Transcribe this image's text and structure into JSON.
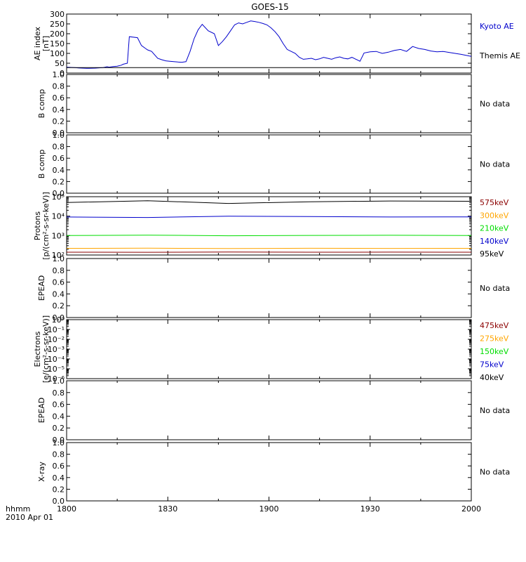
{
  "title": "GOES-15",
  "time_axis": {
    "ticks": [
      "1800",
      "1830",
      "1900",
      "1930",
      "2000"
    ],
    "unit_label": "hhmm",
    "date_label": "2010 Apr 01"
  },
  "colors": {
    "axis": "#000000",
    "kyoto": "#0000cc",
    "themis": "#000000",
    "p575": "#8b0000",
    "p300": "#ffa500",
    "p210": "#00dd00",
    "p140": "#0000cc",
    "p95": "#000000",
    "e475": "#8b0000",
    "e275": "#ffa500",
    "e150": "#00dd00",
    "e75": "#0000cc",
    "e40": "#000000"
  },
  "chart_data": [
    {
      "id": "ae",
      "type": "line",
      "ylabel": [
        "AE index",
        "[nT]"
      ],
      "ylim": [
        0,
        300
      ],
      "yticks": [
        "0",
        "50",
        "100",
        "150",
        "200",
        "250",
        "300"
      ],
      "series": [
        {
          "name": "Kyoto AE",
          "color_key": "kyoto",
          "x": [
            0,
            4,
            6,
            10,
            14,
            18,
            20,
            21,
            23,
            25,
            27,
            28,
            30,
            31,
            35,
            37,
            39,
            40,
            42,
            45,
            47,
            49,
            51,
            53,
            55,
            57,
            59,
            61,
            63,
            65,
            67,
            70,
            73,
            75,
            77,
            79,
            81,
            83,
            85,
            87,
            89,
            91,
            93,
            95,
            97,
            99,
            101,
            103,
            105,
            107,
            109,
            111,
            113,
            115,
            117,
            119,
            121,
            123,
            125,
            127,
            129,
            131,
            133,
            135,
            137,
            139,
            141,
            143,
            145,
            147,
            150,
            153,
            156,
            159,
            162,
            165,
            168,
            171,
            174,
            177,
            180,
            183,
            186,
            189,
            192,
            195,
            200
          ],
          "y": [
            30,
            28,
            26,
            24,
            25,
            28,
            32,
            30,
            33,
            35,
            40,
            45,
            50,
            185,
            180,
            140,
            125,
            118,
            110,
            75,
            68,
            62,
            60,
            58,
            56,
            55,
            58,
            110,
            175,
            220,
            248,
            215,
            200,
            140,
            160,
            185,
            215,
            245,
            255,
            250,
            258,
            265,
            262,
            258,
            252,
            245,
            230,
            210,
            185,
            150,
            120,
            110,
            100,
            80,
            70,
            72,
            75,
            68,
            72,
            80,
            75,
            70,
            78,
            82,
            75,
            72,
            80,
            70,
            60,
            102,
            108,
            110,
            100,
            106,
            115,
            120,
            110,
            135,
            125,
            120,
            112,
            108,
            110,
            105,
            100,
            95,
            85
          ]
        },
        {
          "name": "Themis AE",
          "color_key": "themis",
          "x": [
            0,
            200
          ],
          "y": [
            28,
            28
          ]
        }
      ],
      "legend": [
        {
          "label": "Kyoto AE",
          "color_key": "kyoto"
        },
        {
          "label": "Themis AE",
          "color_key": "themis"
        }
      ],
      "note": ""
    },
    {
      "id": "b1",
      "type": "line",
      "ylabel": [
        "B comp"
      ],
      "ylim": [
        0,
        1
      ],
      "yticks": [
        "0.0",
        "0.2",
        "0.4",
        "0.6",
        "0.8",
        "1.0"
      ],
      "series": [],
      "legend": [],
      "note": "No data"
    },
    {
      "id": "b2",
      "type": "line",
      "ylabel": [
        "B comp"
      ],
      "ylim": [
        0,
        1
      ],
      "yticks": [
        "0.0",
        "0.2",
        "0.4",
        "0.6",
        "0.8",
        "1.0"
      ],
      "series": [],
      "legend": [],
      "note": "No data"
    },
    {
      "id": "protons",
      "type": "line",
      "yscale": "log",
      "ylabel": [
        "Protons",
        "[p/(cm²-s-sr-keV)]"
      ],
      "ylim": [
        100,
        100000
      ],
      "yticks": [
        "10²",
        "10³",
        "10⁴",
        "10⁵"
      ],
      "series": [
        {
          "name": "575keV",
          "color_key": "p575",
          "x": [
            0,
            40,
            80,
            120,
            160,
            200
          ],
          "y": [
            140,
            138,
            142,
            139,
            141,
            140
          ]
        },
        {
          "name": "300keV",
          "color_key": "p300",
          "x": [
            0,
            40,
            80,
            120,
            160,
            200
          ],
          "y": [
            220,
            225,
            215,
            222,
            218,
            220
          ]
        },
        {
          "name": "210keV",
          "color_key": "p210",
          "x": [
            0,
            40,
            80,
            120,
            160,
            200
          ],
          "y": [
            1000,
            1050,
            980,
            1020,
            1040,
            1010
          ]
        },
        {
          "name": "140keV",
          "color_key": "p140",
          "x": [
            0,
            40,
            80,
            120,
            160,
            200
          ],
          "y": [
            9000,
            8500,
            10000,
            9500,
            9000,
            9200
          ]
        },
        {
          "name": "95keV",
          "color_key": "p95",
          "x": [
            0,
            40,
            80,
            120,
            160,
            200
          ],
          "y": [
            50000,
            62000,
            45000,
            55000,
            60000,
            58000
          ]
        }
      ],
      "legend": [
        {
          "label": "575keV",
          "color_key": "p575"
        },
        {
          "label": "300keV",
          "color_key": "p300"
        },
        {
          "label": "210keV",
          "color_key": "p210"
        },
        {
          "label": "140keV",
          "color_key": "p140"
        },
        {
          "label": "95keV",
          "color_key": "p95"
        }
      ],
      "note": ""
    },
    {
      "id": "epead1",
      "type": "line",
      "ylabel": [
        "EPEAD"
      ],
      "ylim": [
        0,
        1
      ],
      "yticks": [
        "0.0",
        "0.2",
        "0.4",
        "0.6",
        "0.8",
        "1.0"
      ],
      "series": [],
      "legend": [],
      "note": "No data"
    },
    {
      "id": "electrons",
      "type": "line",
      "yscale": "log",
      "ylabel": [
        "Electrons",
        "[e/(cm²-s-sr-keV)]"
      ],
      "ylim": [
        1e-06,
        1
      ],
      "yticks": [
        "10⁻⁶",
        "10⁻⁵",
        "10⁻⁴",
        "10⁻³",
        "10⁻²",
        "10⁻¹",
        "10⁰"
      ],
      "series": [],
      "legend": [
        {
          "label": "475keV",
          "color_key": "e475"
        },
        {
          "label": "275keV",
          "color_key": "e275"
        },
        {
          "label": "150keV",
          "color_key": "e150"
        },
        {
          "label": "75keV",
          "color_key": "e75"
        },
        {
          "label": "40keV",
          "color_key": "e40"
        }
      ],
      "note": ""
    },
    {
      "id": "epead2",
      "type": "line",
      "ylabel": [
        "EPEAD"
      ],
      "ylim": [
        0,
        1
      ],
      "yticks": [
        "0.0",
        "0.2",
        "0.4",
        "0.6",
        "0.8",
        "1.0"
      ],
      "series": [],
      "legend": [],
      "note": "No data"
    },
    {
      "id": "xray",
      "type": "line",
      "ylabel": [
        "X-ray"
      ],
      "ylim": [
        0,
        1
      ],
      "yticks": [
        "0.0",
        "0.2",
        "0.4",
        "0.6",
        "0.8",
        "1.0"
      ],
      "series": [],
      "legend": [],
      "note": "No data"
    }
  ]
}
